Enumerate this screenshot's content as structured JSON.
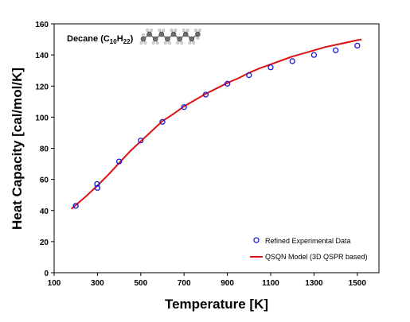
{
  "chart_data": {
    "type": "scatter",
    "title": "",
    "annotation": {
      "prefix": "Decane (C",
      "sub1": "10",
      "mid": "H",
      "sub2": "22",
      "suffix": ")",
      "molecule_icon": "decane-molecule-icon"
    },
    "xlabel": "Temperature [K]",
    "ylabel": "Heat Capacity [cal/mol/K]",
    "xlim": [
      100,
      1600
    ],
    "ylim": [
      0,
      160
    ],
    "xticks": [
      "100",
      "300",
      "500",
      "700",
      "900",
      "1100",
      "1300",
      "1500"
    ],
    "yticks": [
      "0",
      "20",
      "40",
      "60",
      "80",
      "100",
      "120",
      "140",
      "160"
    ],
    "grid": false,
    "legend_position": "bottom-right",
    "series": [
      {
        "name": "Refined Experimental Data",
        "marker": "open-circle",
        "color": "#1a1ad6",
        "x": [
          200,
          298.15,
          300,
          400,
          500,
          600,
          700,
          800,
          900,
          1000,
          1100,
          1200,
          1300,
          1400,
          1500
        ],
        "y": [
          43,
          57,
          54.5,
          71.5,
          85,
          97,
          106.5,
          114.5,
          121.5,
          127,
          132,
          136,
          140,
          143,
          146
        ]
      },
      {
        "name": "QSQN Model (3D QSPR based)",
        "marker": "line",
        "color": "#dd1111",
        "x": [
          180,
          200,
          250,
          300,
          350,
          400,
          450,
          500,
          550,
          600,
          650,
          700,
          750,
          800,
          850,
          900,
          950,
          1000,
          1050,
          1100,
          1150,
          1200,
          1250,
          1300,
          1350,
          1400,
          1450,
          1500,
          1520
        ],
        "y": [
          41,
          43.5,
          49.5,
          56,
          63,
          70.5,
          78,
          84.5,
          91,
          97.5,
          102,
          107,
          111,
          115,
          118.5,
          122,
          125,
          128.5,
          131.5,
          134,
          136.5,
          139,
          141,
          143,
          145,
          146.5,
          148,
          149.5,
          150
        ]
      }
    ]
  }
}
